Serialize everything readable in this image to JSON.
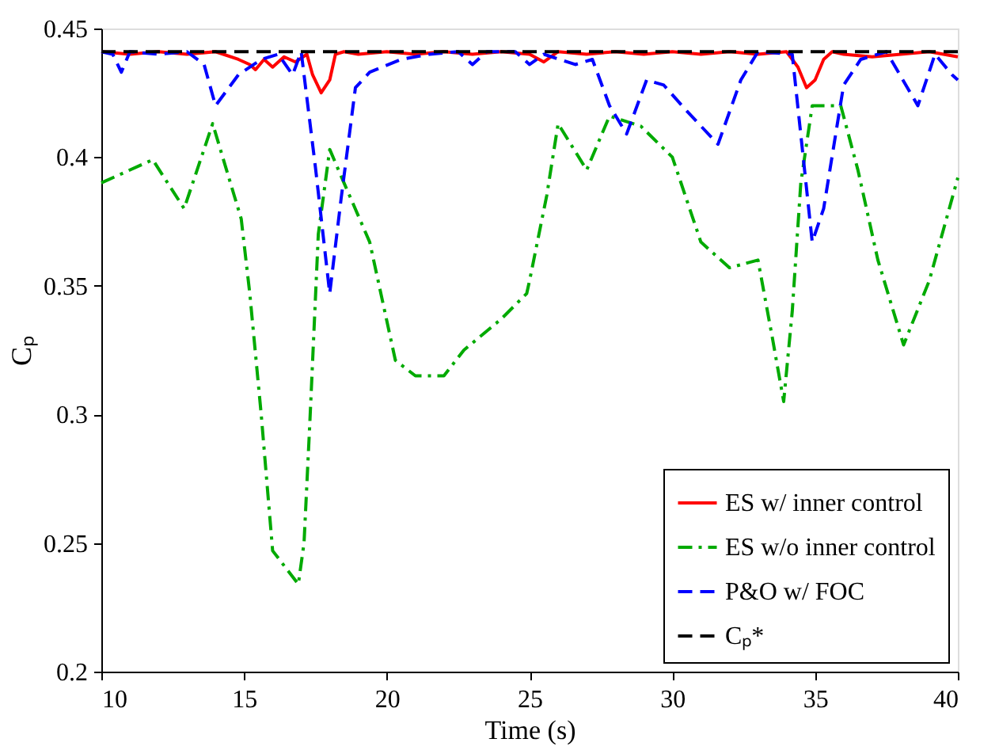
{
  "chart_data": {
    "type": "line",
    "xlabel": "Time (s)",
    "ylabel": "Cₚ",
    "xlim": [
      10,
      40
    ],
    "xticks": [
      10,
      15,
      20,
      25,
      30,
      35,
      40
    ],
    "ylim": [
      0.2,
      0.45
    ],
    "yticks": [
      0.2,
      0.25,
      0.3,
      0.35,
      0.4,
      0.45
    ],
    "grid": false,
    "legend": "bottom right",
    "marker": "none",
    "series": [
      {
        "name": "ES w/ inner control",
        "color": "#ff0000",
        "line_style": "solid",
        "x": [
          10,
          11,
          12,
          13,
          14,
          14.8,
          15.2,
          15.4,
          15.7,
          16,
          16.4,
          16.8,
          17.2,
          17.4,
          17.7,
          18,
          18.2,
          18.5,
          19,
          20,
          21,
          22,
          23,
          24,
          25,
          25.5,
          26,
          27,
          28,
          29,
          30,
          31,
          32,
          33,
          34,
          34.4,
          34.7,
          35,
          35.3,
          35.6,
          36,
          37,
          38,
          39,
          40
        ],
        "values": [
          0.441,
          0.44,
          0.441,
          0.44,
          0.441,
          0.438,
          0.436,
          0.434,
          0.438,
          0.435,
          0.439,
          0.437,
          0.44,
          0.432,
          0.425,
          0.43,
          0.44,
          0.441,
          0.44,
          0.441,
          0.44,
          0.441,
          0.44,
          0.441,
          0.44,
          0.437,
          0.441,
          0.44,
          0.441,
          0.44,
          0.441,
          0.44,
          0.441,
          0.44,
          0.441,
          0.435,
          0.427,
          0.43,
          0.438,
          0.441,
          0.44,
          0.439,
          0.44,
          0.441,
          0.439
        ]
      },
      {
        "name": "ES w/o inner control",
        "color": "#00aa00",
        "line_style": "dashdot",
        "x": [
          10,
          11.8,
          12.9,
          13.9,
          14.9,
          15.2,
          15.6,
          16.0,
          16.9,
          17.1,
          17.3,
          17.6,
          18.0,
          18.5,
          19.4,
          20.3,
          21.0,
          22.0,
          22.7,
          24.0,
          24.9,
          25.0,
          25.6,
          26.0,
          27.0,
          27.8,
          28.9,
          30.0,
          31.0,
          32.0,
          33.0,
          33.5,
          33.9,
          34.2,
          34.5,
          34.9,
          35.9,
          36.5,
          37.2,
          38.1,
          39.0,
          40.0
        ],
        "values": [
          0.39,
          0.399,
          0.38,
          0.413,
          0.376,
          0.347,
          0.3,
          0.247,
          0.234,
          0.25,
          0.296,
          0.37,
          0.403,
          0.39,
          0.367,
          0.321,
          0.315,
          0.315,
          0.325,
          0.337,
          0.347,
          0.352,
          0.385,
          0.413,
          0.395,
          0.416,
          0.412,
          0.4,
          0.367,
          0.357,
          0.36,
          0.33,
          0.305,
          0.34,
          0.39,
          0.42,
          0.42,
          0.395,
          0.36,
          0.327,
          0.352,
          0.392
        ]
      },
      {
        "name": "P&O w/ FOC",
        "color": "#0000ff",
        "line_style": "dashed",
        "x": [
          10,
          10.4,
          10.7,
          11,
          12,
          13,
          13.6,
          14.0,
          14.8,
          15.6,
          16.2,
          16.7,
          17.0,
          17.5,
          18.0,
          18.4,
          18.9,
          19.4,
          20.5,
          21.5,
          22.5,
          23.0,
          23.5,
          24.5,
          25.0,
          25.5,
          26.6,
          27.2,
          27.8,
          28.4,
          29.1,
          29.7,
          30.5,
          31.6,
          32.4,
          33.0,
          34.2,
          34.9,
          35.3,
          36.0,
          36.6,
          37.5,
          38.6,
          39.2,
          39.8,
          40
        ],
        "values": [
          0.441,
          0.44,
          0.433,
          0.441,
          0.44,
          0.441,
          0.436,
          0.42,
          0.432,
          0.438,
          0.44,
          0.432,
          0.441,
          0.396,
          0.347,
          0.384,
          0.427,
          0.433,
          0.438,
          0.44,
          0.441,
          0.436,
          0.441,
          0.441,
          0.436,
          0.44,
          0.436,
          0.438,
          0.42,
          0.409,
          0.43,
          0.428,
          0.418,
          0.405,
          0.43,
          0.441,
          0.44,
          0.367,
          0.38,
          0.428,
          0.438,
          0.441,
          0.42,
          0.44,
          0.432,
          0.43
        ]
      },
      {
        "name": "Cₚ*",
        "color": "#000000",
        "line_style": "dashed",
        "x": [
          10,
          40
        ],
        "values": [
          0.441,
          0.441
        ]
      }
    ]
  }
}
